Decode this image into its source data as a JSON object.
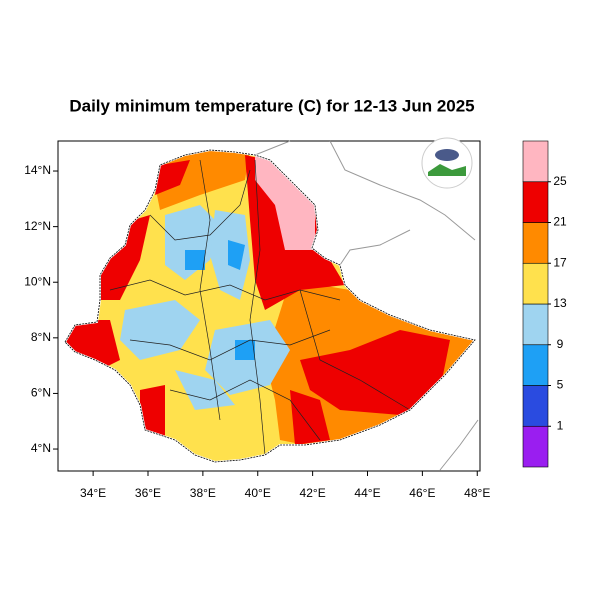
{
  "chart_data": {
    "type": "map",
    "title": "Daily minimum temperature (C) for 12-13 Jun 2025",
    "xlim": [
      32.72,
      48.1
    ],
    "ylim": [
      3.21,
      15.08
    ],
    "xticks": [
      {
        "value": 34,
        "label": "34°E"
      },
      {
        "value": 36,
        "label": "36°E"
      },
      {
        "value": 38,
        "label": "38°E"
      },
      {
        "value": 40,
        "label": "40°E"
      },
      {
        "value": 42,
        "label": "42°E"
      },
      {
        "value": 44,
        "label": "44°E"
      },
      {
        "value": 46,
        "label": "46°E"
      },
      {
        "value": 48,
        "label": "48°E"
      }
    ],
    "yticks": [
      {
        "value": 4,
        "label": "4°N"
      },
      {
        "value": 6,
        "label": "6°N"
      },
      {
        "value": 8,
        "label": "8°N"
      },
      {
        "value": 10,
        "label": "10°N"
      },
      {
        "value": 12,
        "label": "12°N"
      },
      {
        "value": 14,
        "label": "14°N"
      }
    ],
    "colorbar": {
      "levels": [
        1,
        5,
        9,
        13,
        17,
        21,
        25
      ],
      "colors": [
        "#9a1ef0",
        "#2a4be0",
        "#1ea0f5",
        "#9fd4f0",
        "#ffe14d",
        "#ff8a00",
        "#ee0000",
        "#ffb6c1"
      ]
    }
  }
}
